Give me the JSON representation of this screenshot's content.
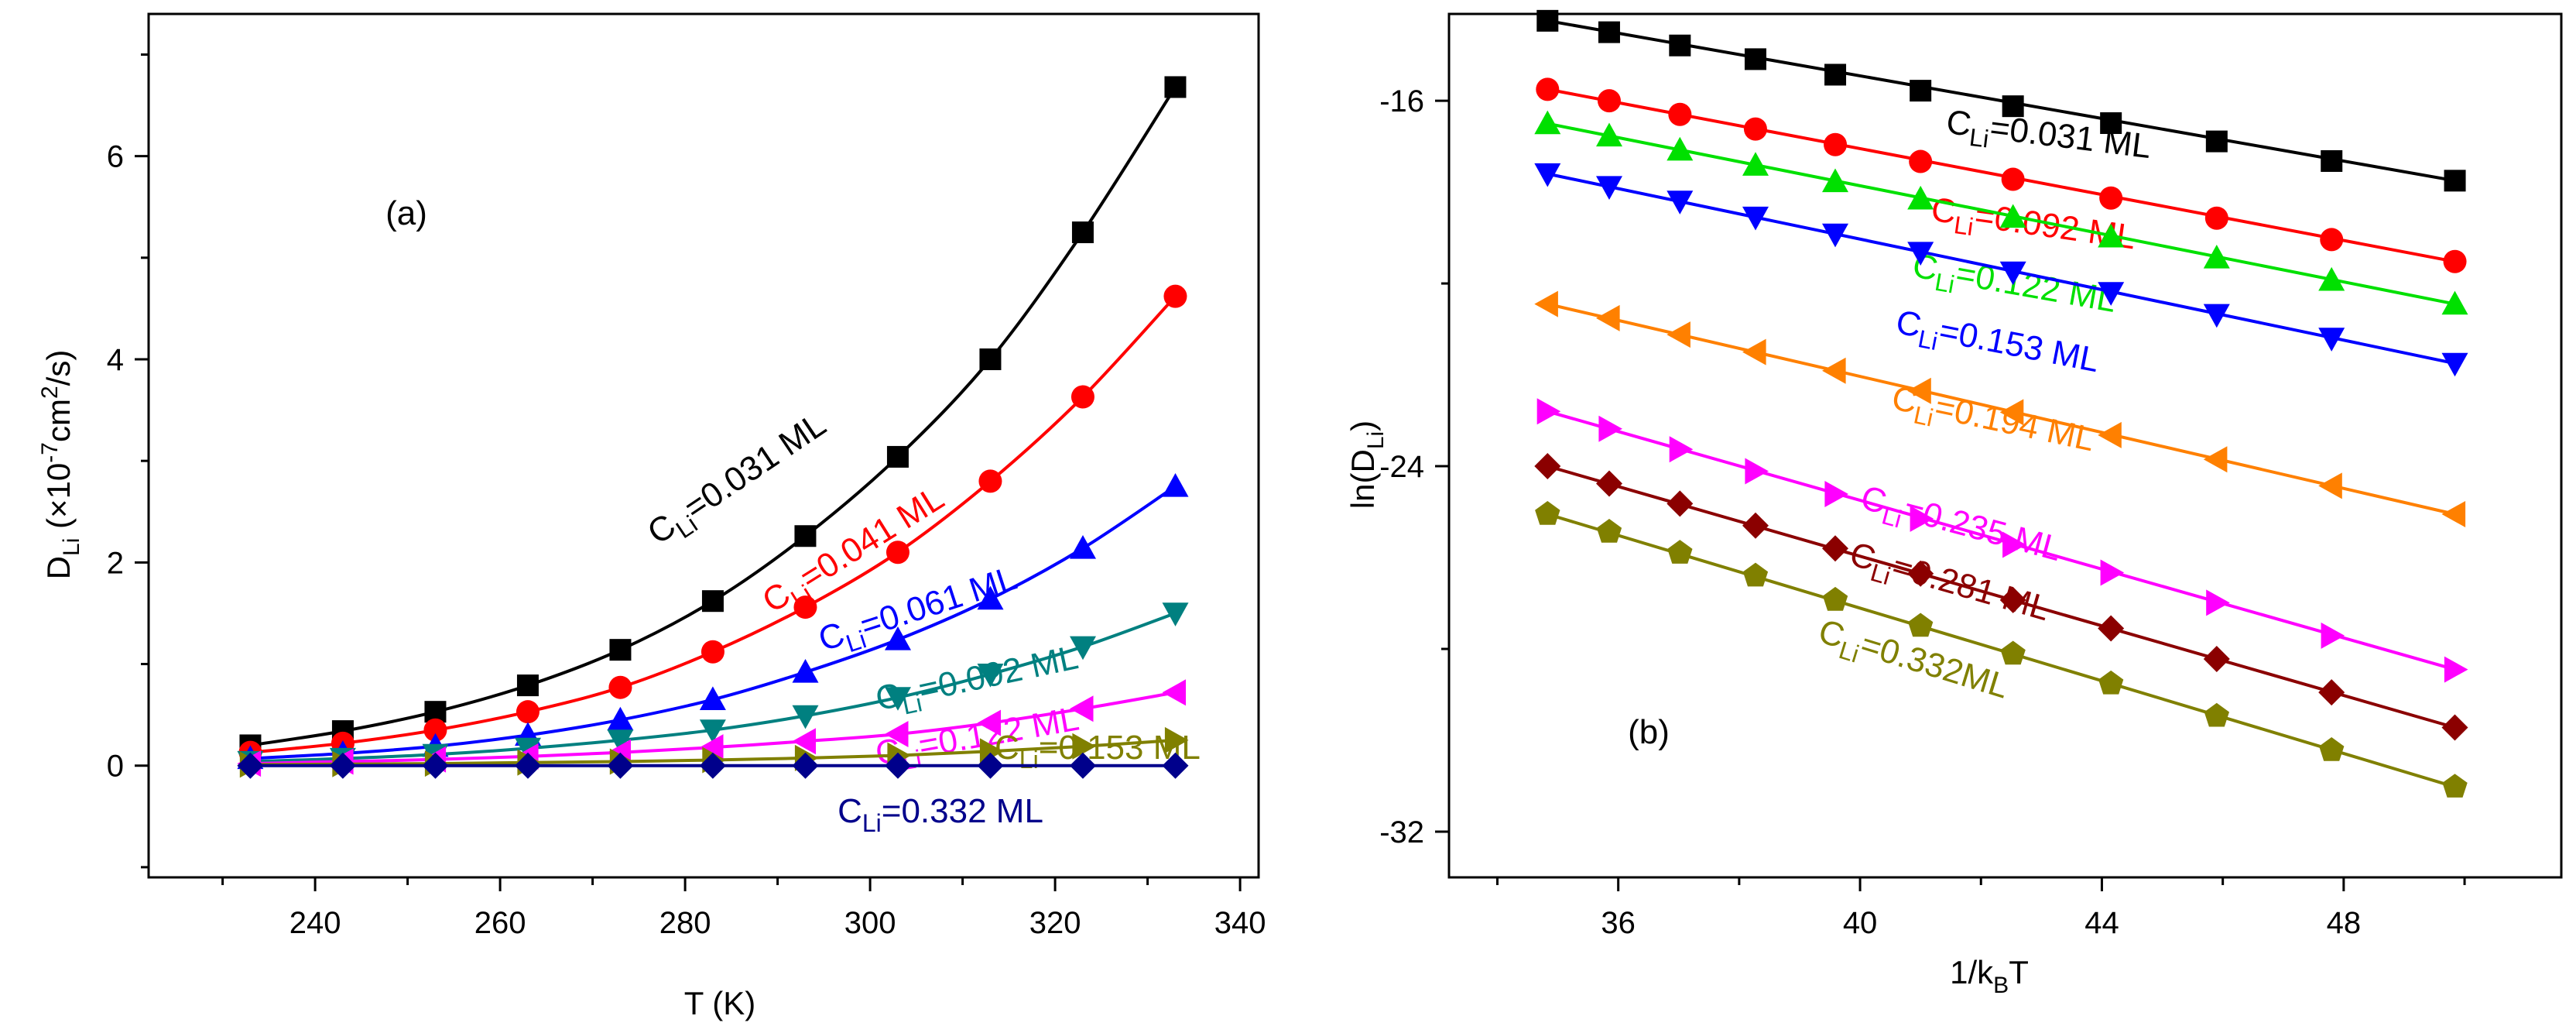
{
  "chart_data": [
    {
      "id": "a",
      "type": "line",
      "panel_label": "(a)",
      "xlabel": "T (K)",
      "ylabel": "D_Li (×10^-7 cm^2/s)",
      "ylabel_parts": [
        "D",
        "Li",
        " (×10",
        "-7",
        "cm",
        "2",
        "/s)"
      ],
      "xlim": [
        222,
        342
      ],
      "ylim": [
        -1.1,
        7.4
      ],
      "xticks": [
        240,
        260,
        280,
        300,
        320,
        340
      ],
      "yticks": [
        0,
        2,
        4,
        6
      ],
      "x": [
        233,
        243,
        253,
        263,
        273,
        283,
        293,
        303,
        313,
        323,
        333
      ],
      "series": [
        {
          "name": "C_Li=0.031 ML",
          "label_main": "C",
          "label_sub": "Li",
          "label_rest": "=0.031 ML",
          "color": "#000000",
          "marker": "square",
          "values": [
            0.2,
            0.34,
            0.53,
            0.79,
            1.14,
            1.62,
            2.26,
            3.04,
            4.0,
            5.25,
            6.68
          ]
        },
        {
          "name": "C_Li=0.041 ML",
          "label_main": "C",
          "label_sub": "Li",
          "label_rest": "=0.041 ML",
          "color": "#ff0000",
          "marker": "circle",
          "values": [
            0.13,
            0.22,
            0.35,
            0.53,
            0.77,
            1.12,
            1.56,
            2.1,
            2.8,
            3.63,
            4.62
          ]
        },
        {
          "name": "C_Li=0.061 ML",
          "label_main": "C",
          "label_sub": "Li",
          "label_rest": "=0.061 ML",
          "color": "#0000ff",
          "marker": "triangle-up",
          "values": [
            0.07,
            0.12,
            0.19,
            0.3,
            0.45,
            0.65,
            0.92,
            1.24,
            1.64,
            2.14,
            2.75
          ]
        },
        {
          "name": "C_Li=0.092 ML",
          "label_main": "C",
          "label_sub": "Li",
          "label_rest": "=0.092 ML",
          "color": "#008080",
          "marker": "triangle-down",
          "values": [
            0.04,
            0.07,
            0.11,
            0.17,
            0.25,
            0.35,
            0.49,
            0.67,
            0.9,
            1.17,
            1.5
          ]
        },
        {
          "name": "C_Li=0.122 ML",
          "label_main": "C",
          "label_sub": "Li",
          "label_rest": "=0.122 ML",
          "color": "#ff00ff",
          "marker": "triangle-left",
          "values": [
            0.02,
            0.04,
            0.06,
            0.09,
            0.13,
            0.18,
            0.24,
            0.31,
            0.42,
            0.56,
            0.72
          ]
        },
        {
          "name": "C_Li=0.153 ML",
          "label_main": "C",
          "label_sub": "Li",
          "label_rest": "=0.153 ML",
          "color": "#808000",
          "marker": "triangle-right",
          "values": [
            0.01,
            0.015,
            0.02,
            0.03,
            0.04,
            0.055,
            0.075,
            0.1,
            0.14,
            0.19,
            0.25
          ]
        },
        {
          "name": "C_Li=0.332 ML",
          "label_main": "C",
          "label_sub": "Li",
          "label_rest": "=0.332 ML",
          "color": "#00008b",
          "marker": "diamond",
          "values": [
            0,
            0,
            0,
            0,
            0,
            0,
            0,
            0,
            0,
            0,
            0
          ]
        }
      ]
    },
    {
      "id": "b",
      "type": "line",
      "panel_label": "(b)",
      "xlabel": "1/k_BT",
      "xlabel_parts": [
        "1/k",
        "B",
        "T"
      ],
      "ylabel": "ln(D_Li)",
      "ylabel_parts": [
        "ln(D",
        "Li",
        ")"
      ],
      "xlim": [
        33.2,
        51.6
      ],
      "ylim": [
        -33.0,
        -14.1
      ],
      "xticks": [
        36,
        40,
        44,
        48
      ],
      "yticks": [
        -16,
        -24,
        -32
      ],
      "x": [
        34.83,
        35.85,
        37.02,
        38.27,
        39.59,
        41.0,
        42.53,
        44.15,
        45.9,
        47.8,
        49.84
      ],
      "series": [
        {
          "name": "C_Li=0.031 ML",
          "label_main": "C",
          "label_sub": "Li",
          "label_rest": "=0.031 ML",
          "color": "#000000",
          "marker": "square",
          "values": [
            -14.25,
            -14.5,
            -14.79,
            -15.09,
            -15.43,
            -15.78,
            -16.12,
            -16.49,
            -16.89,
            -17.32,
            -17.75
          ]
        },
        {
          "name": "C_Li=0.092 ML",
          "label_main": "C",
          "label_sub": "Li",
          "label_rest": "=0.092 ML",
          "color": "#ff0000",
          "marker": "circle",
          "values": [
            -15.75,
            -16.0,
            -16.3,
            -16.62,
            -16.96,
            -17.33,
            -17.72,
            -18.13,
            -18.57,
            -19.04,
            -19.52
          ]
        },
        {
          "name": "C_Li=0.122 ML",
          "label_main": "C",
          "label_sub": "Li",
          "label_rest": "=0.122 ML",
          "color": "#00e000",
          "marker": "triangle-up",
          "values": [
            -16.5,
            -16.77,
            -17.08,
            -17.41,
            -17.77,
            -18.15,
            -18.55,
            -18.98,
            -19.44,
            -19.93,
            -20.45
          ]
        },
        {
          "name": "C_Li=0.153 ML",
          "label_main": "C",
          "label_sub": "Li",
          "label_rest": "=0.153 ML",
          "color": "#0000ff",
          "marker": "triangle-down",
          "values": [
            -17.6,
            -17.88,
            -18.2,
            -18.55,
            -18.92,
            -19.32,
            -19.75,
            -20.2,
            -20.68,
            -21.2,
            -21.75
          ]
        },
        {
          "name": "C_Li=0.194 ML",
          "label_main": "C",
          "label_sub": "Li",
          "label_rest": "=0.194 ML",
          "color": "#ff8000",
          "marker": "triangle-left",
          "values": [
            -20.45,
            -20.76,
            -21.12,
            -21.5,
            -21.91,
            -22.35,
            -22.82,
            -23.32,
            -23.85,
            -24.43,
            -25.05
          ]
        },
        {
          "name": "C_Li=0.235 ML",
          "label_main": "C",
          "label_sub": "Li",
          "label_rest": "=0.235 ML",
          "color": "#ff00ff",
          "marker": "triangle-right",
          "values": [
            -22.8,
            -23.18,
            -23.63,
            -24.11,
            -24.61,
            -25.15,
            -25.72,
            -26.33,
            -26.99,
            -27.71,
            -28.45
          ]
        },
        {
          "name": "C_Li=0.281 ML",
          "label_main": "C",
          "label_sub": "Li",
          "label_rest": "=0.281 ML",
          "color": "#8b0000",
          "marker": "diamond",
          "values": [
            -24.0,
            -24.38,
            -24.82,
            -25.3,
            -25.8,
            -26.35,
            -26.93,
            -27.55,
            -28.22,
            -28.95,
            -29.72
          ]
        },
        {
          "name": "C_Li=0.332ML",
          "label_main": "C",
          "label_sub": "Li",
          "label_rest": "=0.332ML",
          "color": "#808000",
          "marker": "pentagon",
          "values": [
            -25.05,
            -25.44,
            -25.9,
            -26.4,
            -26.93,
            -27.5,
            -28.11,
            -28.76,
            -29.47,
            -30.22,
            -31.02
          ]
        }
      ]
    }
  ]
}
